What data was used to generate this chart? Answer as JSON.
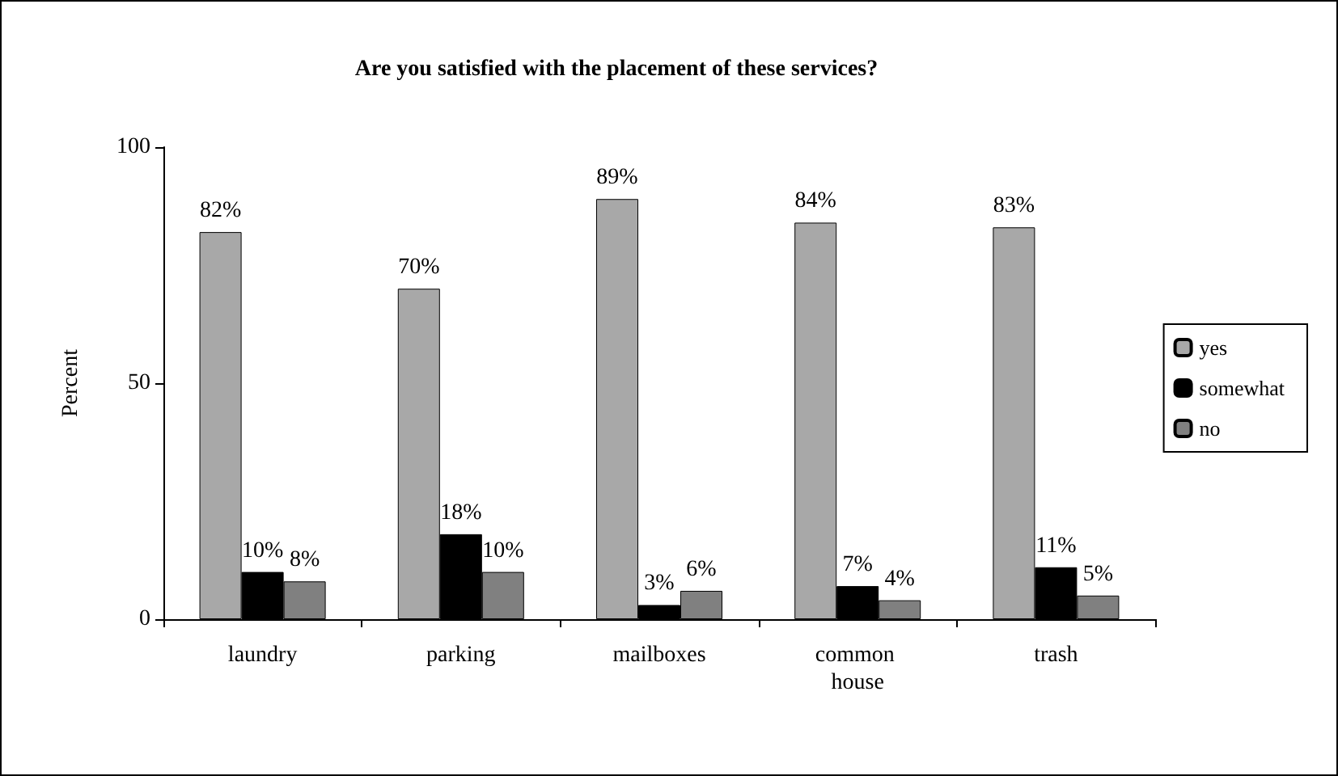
{
  "chart_data": {
    "type": "bar",
    "title": "Are you satisfied with the placement of these services?",
    "ylabel": "Percent",
    "categories": [
      "laundry",
      "parking",
      "mailboxes",
      "common house",
      "trash"
    ],
    "series": [
      {
        "name": "yes",
        "color": "#a8a8a8",
        "values": [
          82,
          70,
          89,
          84,
          83
        ],
        "value_labels": [
          "82%",
          "70%",
          "89%",
          "84%",
          "83%"
        ]
      },
      {
        "name": "somewhat",
        "color": "#000000",
        "values": [
          10,
          18,
          3,
          7,
          11
        ],
        "value_labels": [
          "10%",
          "18%",
          "3%",
          "7%",
          "11%"
        ]
      },
      {
        "name": "no",
        "color": "#808080",
        "values": [
          8,
          10,
          6,
          4,
          5
        ],
        "value_labels": [
          "8%",
          "10%",
          "6%",
          "4%",
          "5%"
        ]
      }
    ],
    "ylim": [
      0,
      100
    ],
    "yticks": [
      0,
      50,
      100
    ],
    "grid": false,
    "legend": "right"
  }
}
